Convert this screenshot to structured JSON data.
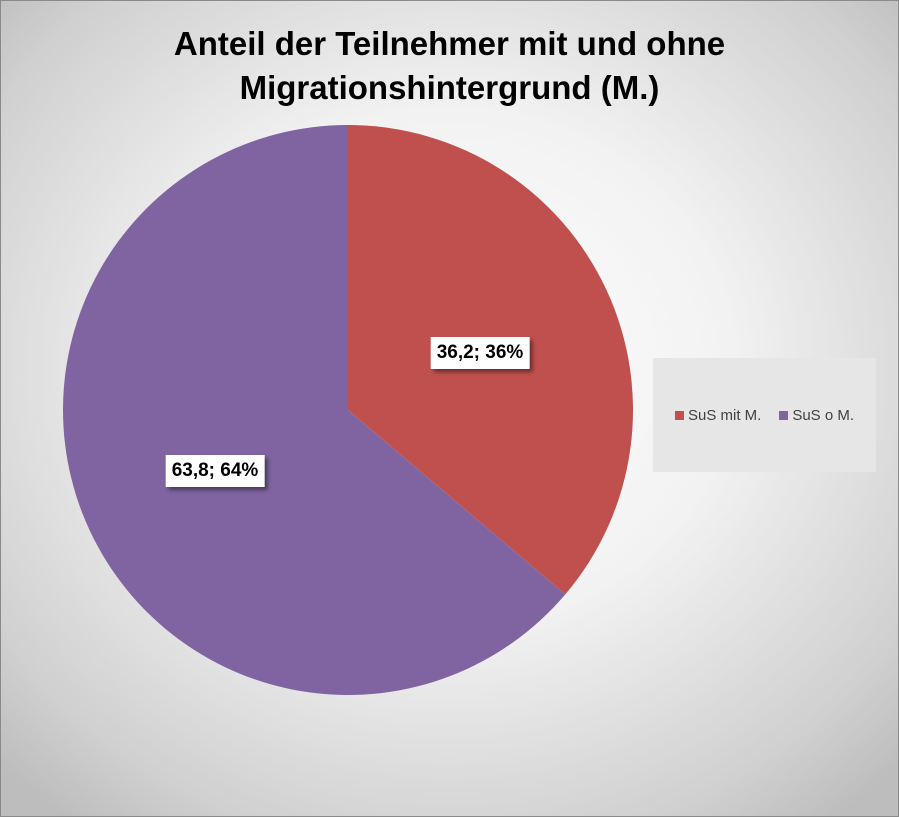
{
  "chart_data": {
    "type": "pie",
    "title": "Anteil der Teilnehmer mit und ohne Migrationshintergrund (M.)",
    "title_lines": [
      "Anteil der Teilnehmer mit und ohne",
      "Migrationshintergrund (M.)"
    ],
    "categories": [
      "SuS mit M.",
      "SuS o M."
    ],
    "values": [
      36.2,
      63.8
    ],
    "data_labels": [
      "36,2; 36%",
      "63,8; 64%"
    ],
    "colors": [
      "#C0504D",
      "#8064A2"
    ],
    "legend_position": "right"
  }
}
